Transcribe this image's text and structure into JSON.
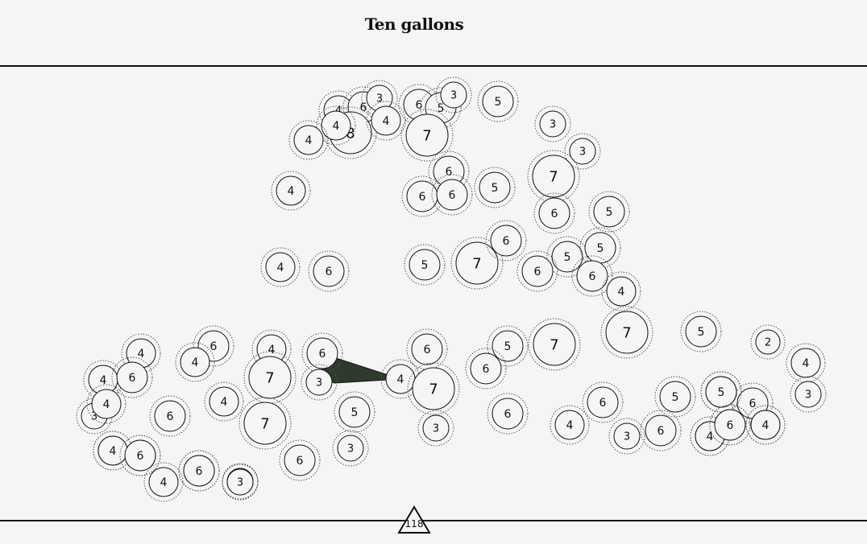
{
  "title": "Ten gallons",
  "level": "118",
  "colors": {
    "background": "#f6f5f5",
    "stroke": "#111111",
    "connector": "#2f3a2c"
  },
  "nodes": [
    {
      "id": "n1",
      "value": "4"
    },
    {
      "id": "n2",
      "value": "6"
    },
    {
      "id": "n3",
      "value": "3"
    },
    {
      "id": "n4",
      "value": "6"
    },
    {
      "id": "n5",
      "value": "5"
    },
    {
      "id": "n6",
      "value": "3"
    },
    {
      "id": "n7",
      "value": "5"
    },
    {
      "id": "n8",
      "value": "8"
    },
    {
      "id": "n9",
      "value": "4"
    },
    {
      "id": "n10",
      "value": "4"
    },
    {
      "id": "n11",
      "value": "4"
    },
    {
      "id": "n12",
      "value": "7"
    },
    {
      "id": "n13",
      "value": "3"
    },
    {
      "id": "n14",
      "value": "3"
    },
    {
      "id": "n15",
      "value": "4"
    },
    {
      "id": "n16",
      "value": "6"
    },
    {
      "id": "n17",
      "value": "6"
    },
    {
      "id": "n18",
      "value": "6"
    },
    {
      "id": "n19",
      "value": "5"
    },
    {
      "id": "n20",
      "value": "7"
    },
    {
      "id": "n21",
      "value": "6"
    },
    {
      "id": "n22",
      "value": "5"
    },
    {
      "id": "n23",
      "value": "4"
    },
    {
      "id": "n24",
      "value": "6"
    },
    {
      "id": "n25",
      "value": "5"
    },
    {
      "id": "n26",
      "value": "7"
    },
    {
      "id": "n27",
      "value": "6"
    },
    {
      "id": "n28",
      "value": "5"
    },
    {
      "id": "n29",
      "value": "5"
    },
    {
      "id": "n30",
      "value": "6"
    },
    {
      "id": "n31",
      "value": "6"
    },
    {
      "id": "n32",
      "value": "4"
    },
    {
      "id": "n33",
      "value": "7"
    },
    {
      "id": "n34",
      "value": "5"
    },
    {
      "id": "n35",
      "value": "2"
    },
    {
      "id": "n36",
      "value": "4"
    },
    {
      "id": "n37",
      "value": "3"
    },
    {
      "id": "n38",
      "value": "4"
    },
    {
      "id": "n39",
      "value": "6"
    },
    {
      "id": "n40",
      "value": "4"
    },
    {
      "id": "n41",
      "value": "4"
    },
    {
      "id": "n42",
      "value": "6"
    },
    {
      "id": "n43",
      "value": "6"
    },
    {
      "id": "n44",
      "value": "7"
    },
    {
      "id": "n45",
      "value": "3"
    },
    {
      "id": "n46",
      "value": "4"
    },
    {
      "id": "n47",
      "value": "7"
    },
    {
      "id": "n48",
      "value": "5"
    },
    {
      "id": "n49",
      "value": "7"
    },
    {
      "id": "n50",
      "value": "6"
    },
    {
      "id": "n51",
      "value": "4"
    },
    {
      "id": "n52",
      "value": "4"
    },
    {
      "id": "n53",
      "value": "5"
    },
    {
      "id": "n54",
      "value": "3"
    },
    {
      "id": "n55",
      "value": "6"
    },
    {
      "id": "n56",
      "value": "4"
    },
    {
      "id": "n57",
      "value": "7"
    },
    {
      "id": "n58",
      "value": "5"
    },
    {
      "id": "n59",
      "value": "3"
    },
    {
      "id": "n60",
      "value": "6"
    },
    {
      "id": "n61",
      "value": "3"
    },
    {
      "id": "n62",
      "value": "4"
    },
    {
      "id": "n63",
      "value": "6"
    },
    {
      "id": "n64",
      "value": "6"
    },
    {
      "id": "n65",
      "value": "4"
    },
    {
      "id": "n66",
      "value": "3"
    },
    {
      "id": "n67",
      "value": "6"
    },
    {
      "id": "n68",
      "value": "5"
    },
    {
      "id": "n69",
      "value": "5"
    },
    {
      "id": "n70",
      "value": "6"
    },
    {
      "id": "n71",
      "value": "6"
    },
    {
      "id": "n72",
      "value": "4"
    },
    {
      "id": "n73",
      "value": "4"
    },
    {
      "id": "n74",
      "value": "6"
    },
    {
      "id": "n75",
      "value": "3"
    },
    {
      "id": "n76",
      "value": "6"
    },
    {
      "id": "n77",
      "value": "4"
    },
    {
      "id": "n78",
      "value": "3"
    },
    {
      "id": "n79",
      "value": "6"
    },
    {
      "id": "n80",
      "value": "4"
    },
    {
      "id": "n81",
      "value": "5"
    },
    {
      "id": "n82",
      "value": "6"
    },
    {
      "id": "n83",
      "value": "4"
    },
    {
      "id": "n84",
      "value": "4"
    },
    {
      "id": "n85",
      "value": "6"
    },
    {
      "id": "n86",
      "value": "6"
    },
    {
      "id": "n87",
      "value": "3"
    }
  ],
  "links": [
    {
      "from": "n48",
      "to": "n49"
    }
  ]
}
